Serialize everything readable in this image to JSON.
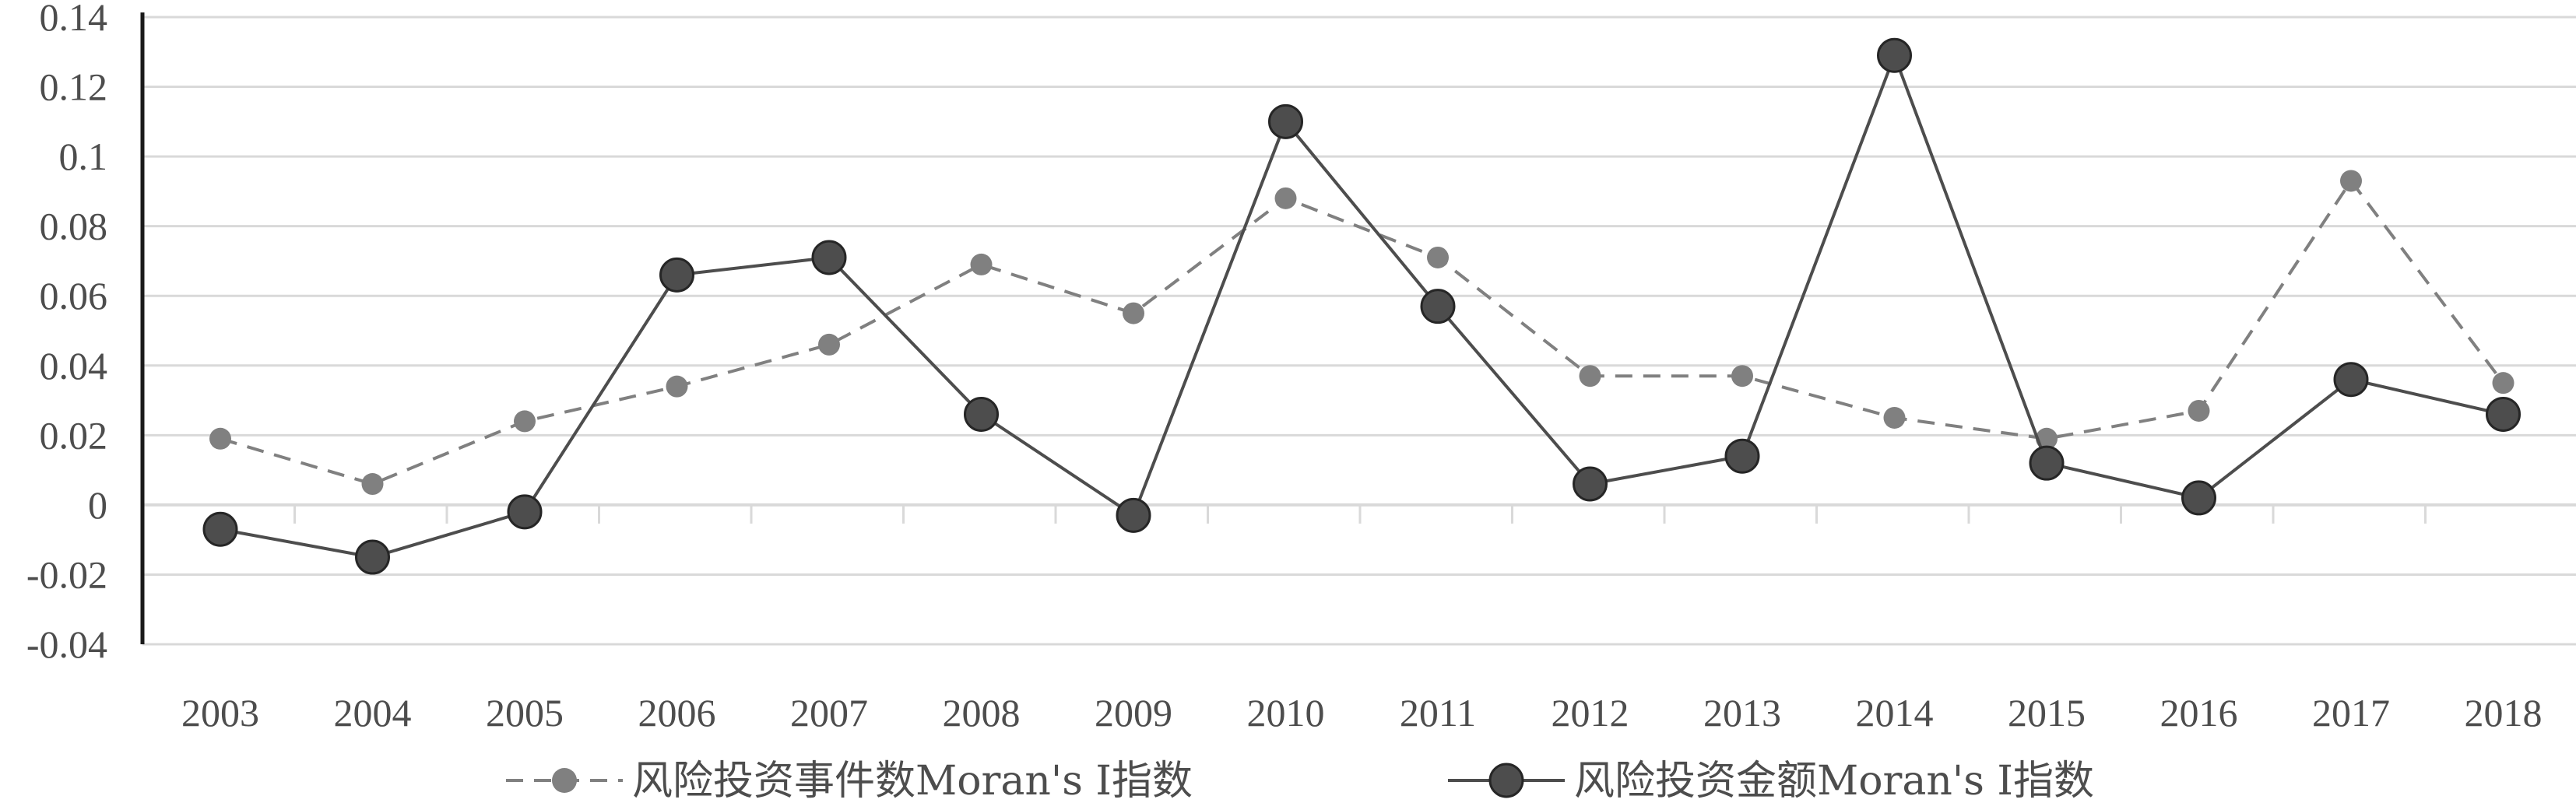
{
  "chart_data": {
    "type": "line",
    "title": "",
    "xlabel": "",
    "ylabel": "",
    "categories": [
      "2003",
      "2004",
      "2005",
      "2006",
      "2007",
      "2008",
      "2009",
      "2010",
      "2011",
      "2012",
      "2013",
      "2014",
      "2015",
      "2016",
      "2017",
      "2018"
    ],
    "ylim": [
      -0.04,
      0.14
    ],
    "yticks": [
      {
        "value": 0.14,
        "label": "0.14"
      },
      {
        "value": 0.12,
        "label": "0.12"
      },
      {
        "value": 0.1,
        "label": "0.1"
      },
      {
        "value": 0.08,
        "label": "0.08"
      },
      {
        "value": 0.06,
        "label": "0.06"
      },
      {
        "value": 0.04,
        "label": "0.04"
      },
      {
        "value": 0.02,
        "label": "0.02"
      },
      {
        "value": 0.0,
        "label": "0"
      },
      {
        "value": -0.02,
        "label": "-0.02"
      },
      {
        "value": -0.04,
        "label": "-0.04"
      }
    ],
    "grid": true,
    "legend_position": "bottom",
    "series": [
      {
        "name": "风险投资事件数Moran's I指数",
        "style": "dashed",
        "color": "#808080",
        "values": [
          0.019,
          0.006,
          0.024,
          0.034,
          0.046,
          0.069,
          0.055,
          0.088,
          0.071,
          0.037,
          0.037,
          0.025,
          0.019,
          0.027,
          0.093,
          0.035
        ]
      },
      {
        "name": "风险投资金额Moran's I指数",
        "style": "solid",
        "color": "#4d4d4d",
        "values": [
          -0.007,
          -0.015,
          -0.002,
          0.066,
          0.071,
          0.026,
          -0.003,
          0.11,
          0.057,
          0.006,
          0.014,
          0.129,
          0.012,
          0.002,
          0.036,
          0.026
        ]
      }
    ]
  }
}
